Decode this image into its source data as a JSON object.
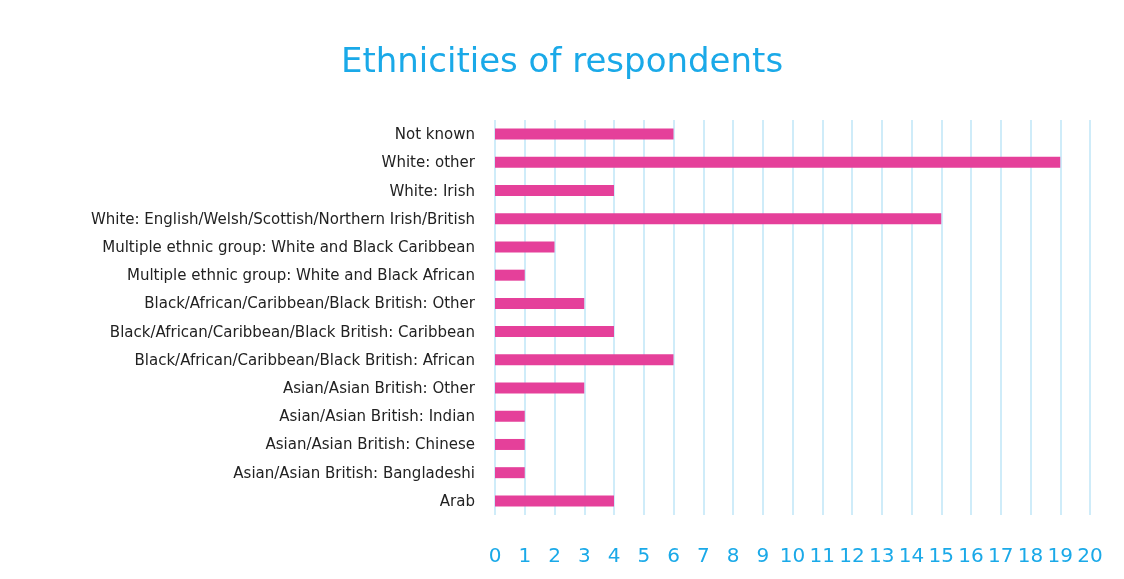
{
  "chart_data": {
    "type": "bar",
    "orientation": "horizontal",
    "title": "Ethnicities of respondents",
    "categories": [
      "Not known",
      "White: other",
      "White: Irish",
      "White: English/Welsh/Scottish/Northern Irish/British",
      "Multiple ethnic group: White and Black Caribbean",
      "Multiple ethnic group: White and Black African",
      "Black/African/Caribbean/Black British: Other",
      "Black/African/Caribbean/Black British: Caribbean",
      "Black/African/Caribbean/Black British: African",
      "Asian/Asian British: Other",
      "Asian/Asian British: Indian",
      "Asian/Asian British: Chinese",
      "Asian/Asian British: Bangladeshi",
      "Arab"
    ],
    "values": [
      6,
      19,
      4,
      15,
      2,
      1,
      3,
      4,
      6,
      3,
      1,
      1,
      1,
      4
    ],
    "color": "#e5409a",
    "xlim": [
      0,
      20
    ],
    "xticks": [
      0,
      1,
      2,
      3,
      4,
      5,
      6,
      7,
      8,
      9,
      10,
      11,
      12,
      13,
      14,
      15,
      16,
      17,
      18,
      19,
      20
    ],
    "grid": "x"
  }
}
